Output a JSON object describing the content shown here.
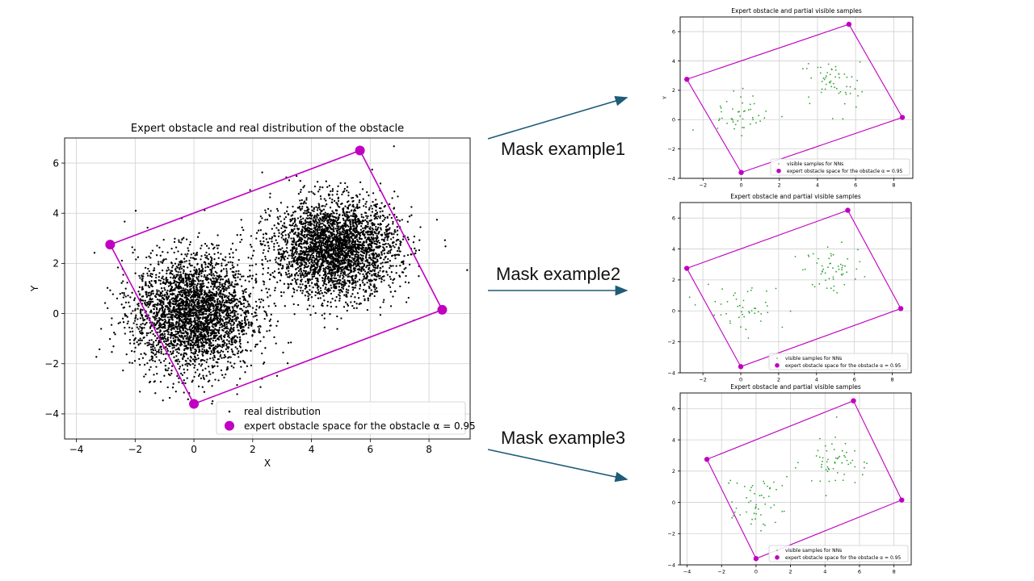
{
  "annotations": {
    "mask_labels": [
      "Mask example1",
      "Mask example2",
      "Mask example3"
    ],
    "arrow_color": "#1f5c78"
  },
  "colors": {
    "real_points": "#000000",
    "visible_points": "#2ca02c",
    "obstacle": "#c000c0",
    "grid": "#d0d0d0"
  },
  "chart_data": [
    {
      "type": "scatter",
      "title": "Expert obstacle and real distribution of the obstacle",
      "xlabel": "X",
      "ylabel": "Y",
      "xlim": [
        -4.4,
        9.4
      ],
      "ylim": [
        -5.0,
        7.0
      ],
      "xticks": [
        -4,
        -2,
        0,
        2,
        4,
        6,
        8
      ],
      "yticks": [
        -4,
        -2,
        0,
        2,
        4,
        6
      ],
      "grid": true,
      "legend_position": "lower-right",
      "series": [
        {
          "name": "real distribution",
          "marker": "dot",
          "clusters": [
            {
              "center": [
                0.0,
                0.0
              ],
              "std": [
                1.0,
                1.15
              ],
              "count": 3200
            },
            {
              "center": [
                4.8,
                2.6
              ],
              "std": [
                1.05,
                0.95
              ],
              "count": 3200
            }
          ]
        },
        {
          "name": "expert obstacle space for the obstacle α = 0.95",
          "marker": "circle",
          "closed_polygon": true,
          "points": [
            [
              -2.85,
              2.75
            ],
            [
              5.65,
              6.5
            ],
            [
              8.45,
              0.15
            ],
            [
              0.0,
              -3.6
            ]
          ]
        }
      ]
    },
    {
      "type": "scatter",
      "title": "Expert obstacle and partial visible samples",
      "xlabel": "",
      "ylabel": "Y",
      "xlim": [
        -3.2,
        9.0
      ],
      "ylim": [
        -4.0,
        7.0
      ],
      "xticks": [
        -2,
        0,
        2,
        4,
        6,
        8
      ],
      "yticks": [
        -4,
        -2,
        0,
        2,
        4,
        6
      ],
      "grid": true,
      "legend_position": "lower-right",
      "series": [
        {
          "name": "visible samples for NNs",
          "marker": "dot",
          "clusters": [
            {
              "center": [
                0.1,
                0.4
              ],
              "std": [
                0.85,
                0.75
              ],
              "count": 45
            },
            {
              "center": [
                4.8,
                2.5
              ],
              "std": [
                0.9,
                0.8
              ],
              "count": 55
            }
          ]
        },
        {
          "name": "expert obstacle space for the obstacle α = 0.95",
          "marker": "circle",
          "closed_polygon": true,
          "points": [
            [
              -2.85,
              2.75
            ],
            [
              5.65,
              6.5
            ],
            [
              8.45,
              0.15
            ],
            [
              0.0,
              -3.6
            ]
          ]
        }
      ]
    },
    {
      "type": "scatter",
      "title": "Expert obstacle and partial visible samples",
      "xlabel": "",
      "ylabel": "",
      "xlim": [
        -3.2,
        9.0
      ],
      "ylim": [
        -4.0,
        7.0
      ],
      "xticks": [
        -2,
        0,
        2,
        4,
        6,
        8
      ],
      "yticks": [
        -4,
        -2,
        0,
        2,
        4,
        6
      ],
      "grid": true,
      "legend_position": "lower-right",
      "series": [
        {
          "name": "visible samples for NNs",
          "marker": "dot",
          "clusters": [
            {
              "center": [
                0.0,
                0.3
              ],
              "std": [
                0.85,
                0.8
              ],
              "count": 45
            },
            {
              "center": [
                4.7,
                2.7
              ],
              "std": [
                0.95,
                0.8
              ],
              "count": 55
            }
          ]
        },
        {
          "name": "expert obstacle space for the obstacle α = 0.95",
          "marker": "circle",
          "closed_polygon": true,
          "points": [
            [
              -2.85,
              2.75
            ],
            [
              5.65,
              6.5
            ],
            [
              8.45,
              0.15
            ],
            [
              0.0,
              -3.6
            ]
          ]
        }
      ]
    },
    {
      "type": "scatter",
      "title": "Expert obstacle and partial visible samples",
      "xlabel": "",
      "ylabel": "",
      "xlim": [
        -4.4,
        9.0
      ],
      "ylim": [
        -4.0,
        7.0
      ],
      "xticks": [
        -4,
        -2,
        0,
        2,
        4,
        6,
        8
      ],
      "yticks": [
        -4,
        -2,
        0,
        2,
        4,
        6
      ],
      "grid": true,
      "legend_position": "lower-right",
      "series": [
        {
          "name": "visible samples for NNs",
          "marker": "dot",
          "clusters": [
            {
              "center": [
                0.1,
                0.2
              ],
              "std": [
                0.9,
                0.85
              ],
              "count": 50
            },
            {
              "center": [
                4.6,
                2.6
              ],
              "std": [
                0.9,
                0.9
              ],
              "count": 55
            }
          ]
        },
        {
          "name": "expert obstacle space for the obstacle α = 0.95",
          "marker": "circle",
          "closed_polygon": true,
          "points": [
            [
              -2.85,
              2.75
            ],
            [
              5.65,
              6.5
            ],
            [
              8.45,
              0.15
            ],
            [
              0.0,
              -3.6
            ]
          ]
        }
      ]
    }
  ]
}
